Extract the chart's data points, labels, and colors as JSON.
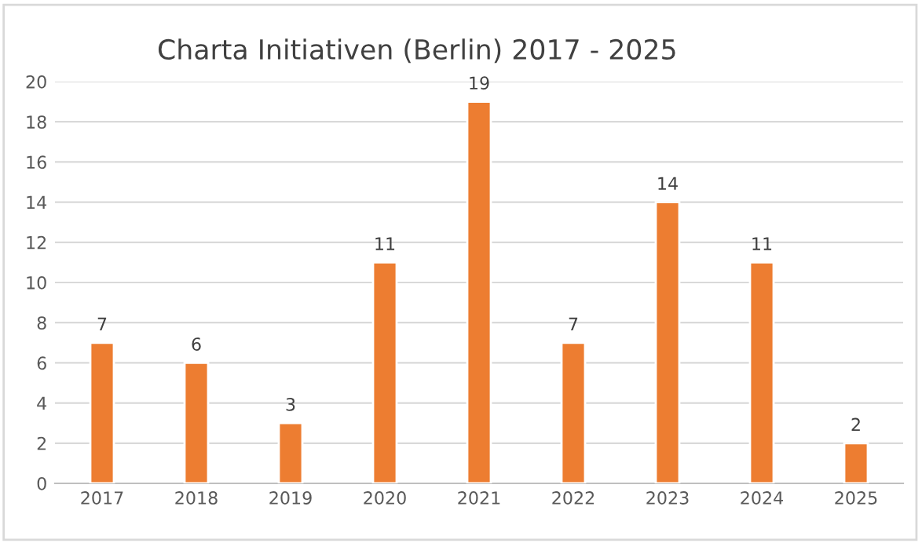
{
  "chart_data": {
    "type": "bar",
    "title": "Charta Initiativen (Berlin) 2017 - 2025",
    "categories": [
      "2017",
      "2018",
      "2019",
      "2020",
      "2021",
      "2022",
      "2023",
      "2024",
      "2025"
    ],
    "values": [
      7,
      6,
      3,
      11,
      19,
      7,
      14,
      11,
      2
    ],
    "color": "#ed7d31",
    "ylim": [
      0,
      20
    ],
    "yticks": [
      0,
      2,
      4,
      6,
      8,
      10,
      12,
      14,
      16,
      18,
      20
    ],
    "grid": "y",
    "data_labels": true
  }
}
